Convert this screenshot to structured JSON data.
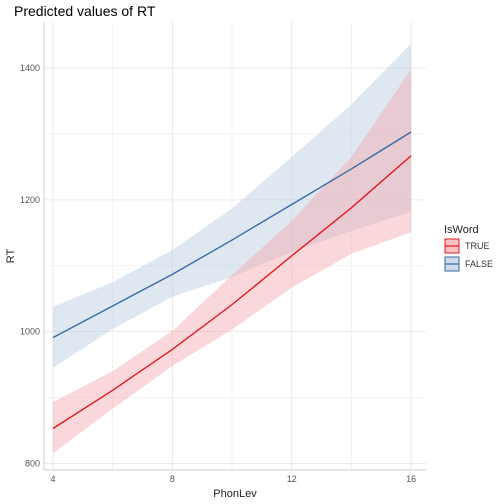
{
  "chart_data": {
    "type": "line",
    "title": "Predicted values of RT",
    "xlabel": "PhonLev",
    "ylabel": "RT",
    "xlim": [
      3.7,
      16.5
    ],
    "ylim": [
      790,
      1470
    ],
    "xticks": [
      4,
      6,
      8,
      10,
      12,
      14,
      16
    ],
    "xtick_labels": [
      "4",
      "",
      "8",
      "",
      "12",
      "",
      "16"
    ],
    "yticks": [
      800,
      900,
      1000,
      1100,
      1200,
      1300,
      1400
    ],
    "ytick_labels": [
      "800",
      "",
      "1000",
      "",
      "1200",
      "",
      "1400"
    ],
    "grid": true,
    "legend": {
      "title": "IsWord",
      "position": "right"
    },
    "series": [
      {
        "name": "TRUE",
        "color": "#e41a1c",
        "fill": "#f4a6ad",
        "x": [
          4,
          6,
          8,
          10,
          12,
          14,
          16
        ],
        "y": [
          853,
          911,
          973,
          1041,
          1115,
          1188,
          1267
        ],
        "lower": [
          815,
          883,
          948,
          1003,
          1067,
          1118,
          1151
        ],
        "upper": [
          893,
          940,
          1001,
          1086,
          1168,
          1265,
          1398
        ]
      },
      {
        "name": "FALSE",
        "color": "#3a6ba6",
        "fill": "#b8c9e0",
        "x": [
          4,
          6,
          8,
          10,
          12,
          14,
          16
        ],
        "y": [
          991,
          1039,
          1087,
          1139,
          1193,
          1247,
          1303
        ],
        "lower": [
          945,
          1004,
          1053,
          1083,
          1121,
          1153,
          1182
        ],
        "upper": [
          1038,
          1075,
          1124,
          1187,
          1265,
          1345,
          1437
        ]
      }
    ]
  }
}
